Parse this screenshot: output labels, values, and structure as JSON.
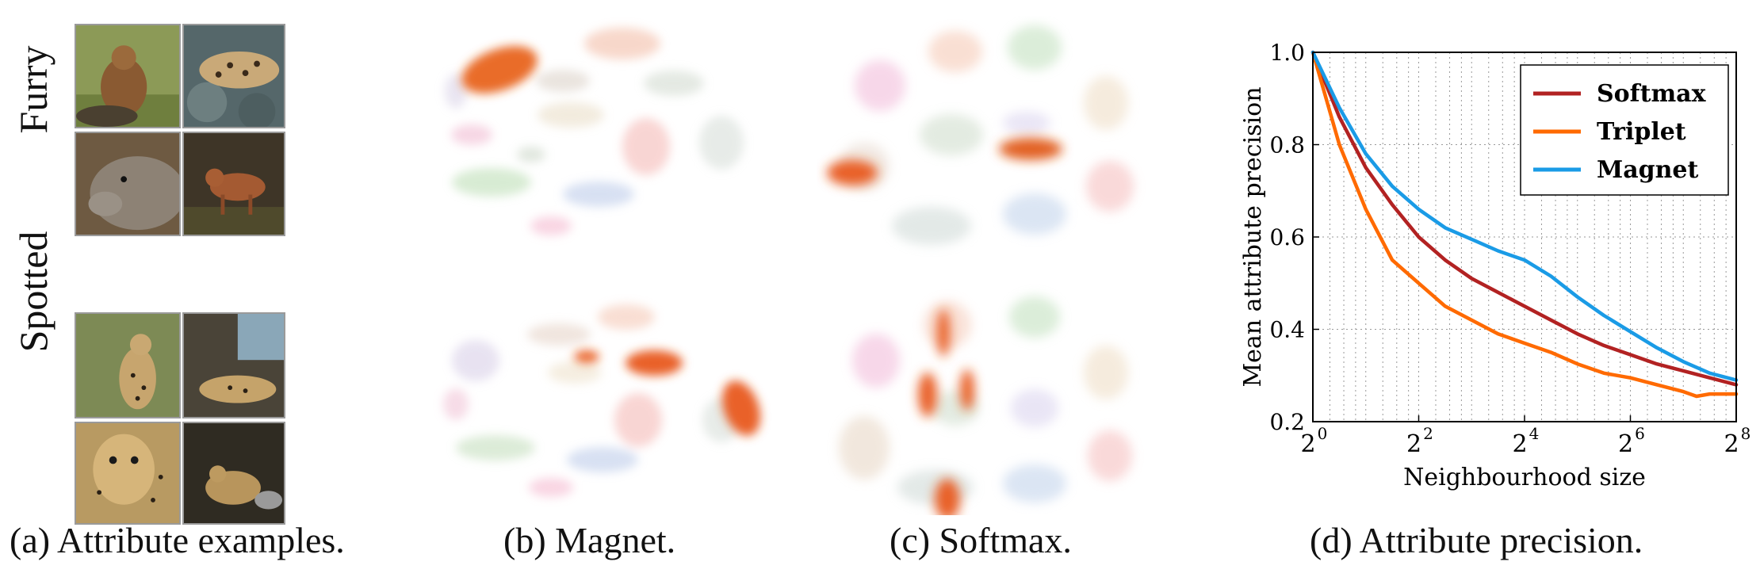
{
  "panel_a": {
    "caption": "(a)  Attribute examples.",
    "row_labels": [
      "Furry",
      "Spotted"
    ]
  },
  "panel_b": {
    "caption": "(b)  Magnet."
  },
  "panel_c": {
    "caption": "(c)  Softmax."
  },
  "panel_d": {
    "caption": "(d)  Attribute precision."
  },
  "colors": {
    "softmax": "#b22222",
    "triplet": "#ff6a00",
    "magnet": "#1a9be6",
    "highlight": "#e8581a"
  },
  "chart_data": {
    "type": "line",
    "xlabel": "Neighbourhood size",
    "ylabel": "Mean attribute precision",
    "xscale": "log2",
    "xlim_log2": [
      0,
      8
    ],
    "x_tick_labels": [
      "2",
      "2",
      "2",
      "2",
      "2"
    ],
    "x_tick_exponents": [
      "0",
      "2",
      "4",
      "6",
      "8"
    ],
    "x_tick_log2_values": [
      0,
      2,
      4,
      6,
      8
    ],
    "ylim": [
      0.2,
      1.0
    ],
    "y_ticks": [
      0.2,
      0.4,
      0.6,
      0.8,
      1.0
    ],
    "y_tick_labels": [
      "0.2",
      "0.4",
      "0.6",
      "0.8",
      "1.0"
    ],
    "grid": "dotted",
    "legend_position": "top-right",
    "series": [
      {
        "name": "Softmax",
        "color": "#b22222",
        "x_log2": [
          0,
          0.5,
          1,
          1.5,
          2,
          2.5,
          3,
          3.5,
          4,
          4.5,
          5,
          5.5,
          6,
          6.5,
          7,
          7.5,
          8
        ],
        "y": [
          1.0,
          0.86,
          0.75,
          0.67,
          0.6,
          0.55,
          0.51,
          0.48,
          0.45,
          0.42,
          0.39,
          0.365,
          0.345,
          0.325,
          0.31,
          0.295,
          0.28
        ]
      },
      {
        "name": "Triplet",
        "color": "#ff6a00",
        "x_log2": [
          0,
          0.5,
          1,
          1.5,
          2,
          2.5,
          3,
          3.5,
          4,
          4.5,
          5,
          5.5,
          6,
          6.5,
          7,
          7.25,
          7.5,
          8
        ],
        "y": [
          1.0,
          0.8,
          0.66,
          0.55,
          0.5,
          0.45,
          0.42,
          0.39,
          0.37,
          0.35,
          0.325,
          0.305,
          0.295,
          0.28,
          0.265,
          0.255,
          0.26,
          0.26
        ]
      },
      {
        "name": "Magnet",
        "color": "#1a9be6",
        "x_log2": [
          0,
          0.5,
          1,
          1.5,
          2,
          2.5,
          3,
          3.5,
          4,
          4.5,
          5,
          5.5,
          6,
          6.5,
          7,
          7.5,
          8
        ],
        "y": [
          1.0,
          0.88,
          0.78,
          0.71,
          0.66,
          0.62,
          0.595,
          0.57,
          0.55,
          0.515,
          0.47,
          0.43,
          0.395,
          0.36,
          0.33,
          0.305,
          0.29
        ]
      }
    ]
  }
}
